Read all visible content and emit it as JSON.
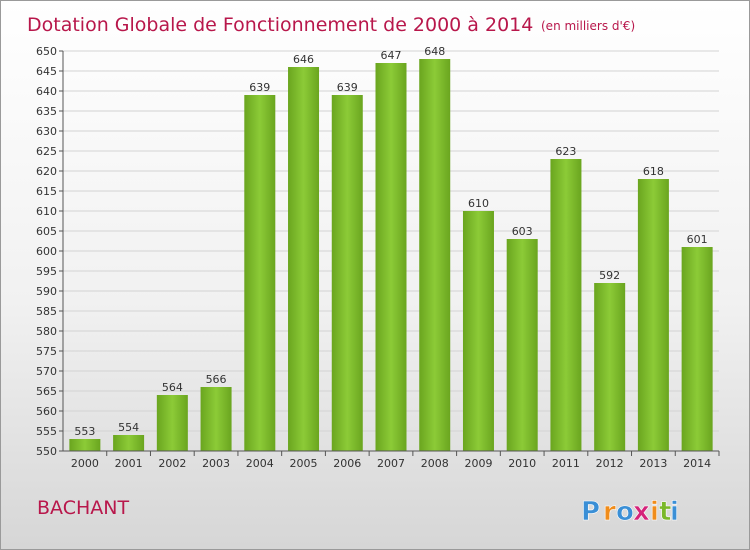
{
  "chart_data": {
    "type": "bar",
    "title": "Dotation Globale de Fonctionnement de 2000 à 2014",
    "subtitle": "(en milliers d'€)",
    "categories": [
      "2000",
      "2001",
      "2002",
      "2003",
      "2004",
      "2005",
      "2006",
      "2007",
      "2008",
      "2009",
      "2010",
      "2011",
      "2012",
      "2013",
      "2014"
    ],
    "values": [
      553,
      554,
      564,
      566,
      639,
      646,
      639,
      647,
      648,
      610,
      603,
      623,
      592,
      618,
      601
    ],
    "ylim": [
      550,
      650
    ],
    "ytick_step": 5,
    "grid": true,
    "legend": "none",
    "bar_color": "#7dbb2a"
  },
  "commune": "BACHANT",
  "logo": {
    "letters": [
      "P",
      "r",
      "o",
      "x",
      "i",
      "t",
      "i"
    ],
    "colors": [
      "#3a8fd6",
      "#f08c1a",
      "#3a8fd6",
      "#d4237a",
      "#f08c1a",
      "#7ab829",
      "#3a8fd6"
    ]
  }
}
